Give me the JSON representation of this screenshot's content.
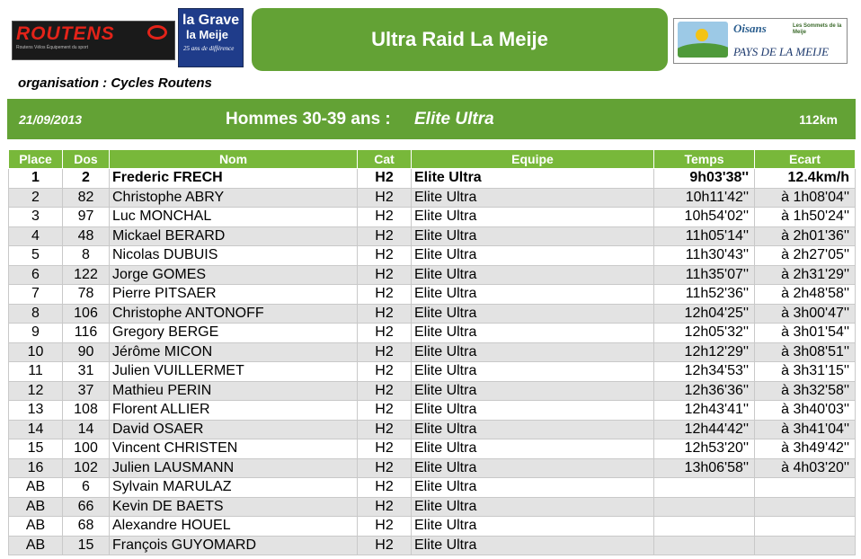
{
  "logos": {
    "routens": {
      "brand": "ROUTENS",
      "tagline": "Routens Vélos Équipement du sport"
    },
    "lagrave": {
      "line1": "la Grave",
      "line2": "la Meije",
      "line3": "25 ans de différence"
    },
    "sponsors": {
      "left": "",
      "middle": "Oisans",
      "right": "Les Sommets de la Meije",
      "bottom": "PAYS DE LA MEIJE"
    }
  },
  "title": "Ultra Raid La Meije",
  "organisation": "organisation : Cycles Routens",
  "band": {
    "date": "21/09/2013",
    "category": "Hommes 30-39 ans :",
    "course": "Elite Ultra",
    "distance": "112km"
  },
  "columns": [
    "Place",
    "Dos",
    "Nom",
    "Cat",
    "Equipe",
    "Temps",
    "Ecart"
  ],
  "rows": [
    {
      "place": "1",
      "dos": "2",
      "nom": "Frederic FRECH",
      "cat": "H2",
      "equipe": "Elite Ultra",
      "temps": "9h03'38''",
      "ecart": "12.4km/h"
    },
    {
      "place": "2",
      "dos": "82",
      "nom": "Christophe ABRY",
      "cat": "H2",
      "equipe": "Elite Ultra",
      "temps": "10h11'42''",
      "ecart": "à 1h08'04''"
    },
    {
      "place": "3",
      "dos": "97",
      "nom": "Luc MONCHAL",
      "cat": "H2",
      "equipe": "Elite Ultra",
      "temps": "10h54'02''",
      "ecart": "à 1h50'24''"
    },
    {
      "place": "4",
      "dos": "48",
      "nom": "Mickael BERARD",
      "cat": "H2",
      "equipe": "Elite Ultra",
      "temps": "11h05'14''",
      "ecart": "à 2h01'36''"
    },
    {
      "place": "5",
      "dos": "8",
      "nom": "Nicolas DUBUIS",
      "cat": "H2",
      "equipe": "Elite Ultra",
      "temps": "11h30'43''",
      "ecart": "à 2h27'05''"
    },
    {
      "place": "6",
      "dos": "122",
      "nom": "Jorge GOMES",
      "cat": "H2",
      "equipe": "Elite Ultra",
      "temps": "11h35'07''",
      "ecart": "à 2h31'29''"
    },
    {
      "place": "7",
      "dos": "78",
      "nom": "Pierre PITSAER",
      "cat": "H2",
      "equipe": "Elite Ultra",
      "temps": "11h52'36''",
      "ecart": "à 2h48'58''"
    },
    {
      "place": "8",
      "dos": "106",
      "nom": "Christophe ANTONOFF",
      "cat": "H2",
      "equipe": "Elite Ultra",
      "temps": "12h04'25''",
      "ecart": "à 3h00'47''"
    },
    {
      "place": "9",
      "dos": "116",
      "nom": "Gregory BERGE",
      "cat": "H2",
      "equipe": "Elite Ultra",
      "temps": "12h05'32''",
      "ecart": "à 3h01'54''"
    },
    {
      "place": "10",
      "dos": "90",
      "nom": "Jérôme MICON",
      "cat": "H2",
      "equipe": "Elite Ultra",
      "temps": "12h12'29''",
      "ecart": "à 3h08'51''"
    },
    {
      "place": "11",
      "dos": "31",
      "nom": "Julien VUILLERMET",
      "cat": "H2",
      "equipe": "Elite Ultra",
      "temps": "12h34'53''",
      "ecart": "à 3h31'15''"
    },
    {
      "place": "12",
      "dos": "37",
      "nom": "Mathieu PERIN",
      "cat": "H2",
      "equipe": "Elite Ultra",
      "temps": "12h36'36''",
      "ecart": "à 3h32'58''"
    },
    {
      "place": "13",
      "dos": "108",
      "nom": "Florent ALLIER",
      "cat": "H2",
      "equipe": "Elite Ultra",
      "temps": "12h43'41''",
      "ecart": "à 3h40'03''"
    },
    {
      "place": "14",
      "dos": "14",
      "nom": "David OSAER",
      "cat": "H2",
      "equipe": "Elite Ultra",
      "temps": "12h44'42''",
      "ecart": "à 3h41'04''"
    },
    {
      "place": "15",
      "dos": "100",
      "nom": "Vincent CHRISTEN",
      "cat": "H2",
      "equipe": "Elite Ultra",
      "temps": "12h53'20''",
      "ecart": "à 3h49'42''"
    },
    {
      "place": "16",
      "dos": "102",
      "nom": "Julien LAUSMANN",
      "cat": "H2",
      "equipe": "Elite Ultra",
      "temps": "13h06'58''",
      "ecart": "à 4h03'20''"
    },
    {
      "place": "AB",
      "dos": "6",
      "nom": "Sylvain MARULAZ",
      "cat": "H2",
      "equipe": "Elite Ultra",
      "temps": "",
      "ecart": ""
    },
    {
      "place": "AB",
      "dos": "66",
      "nom": "Kevin DE BAETS",
      "cat": "H2",
      "equipe": "Elite Ultra",
      "temps": "",
      "ecart": ""
    },
    {
      "place": "AB",
      "dos": "68",
      "nom": "Alexandre HOUEL",
      "cat": "H2",
      "equipe": "Elite Ultra",
      "temps": "",
      "ecart": ""
    },
    {
      "place": "AB",
      "dos": "15",
      "nom": "François GUYOMARD",
      "cat": "H2",
      "equipe": "Elite Ultra",
      "temps": "",
      "ecart": ""
    }
  ],
  "colors": {
    "green": "#63a235",
    "header_green": "#78b83a",
    "stripe": "#e3e3e3"
  }
}
